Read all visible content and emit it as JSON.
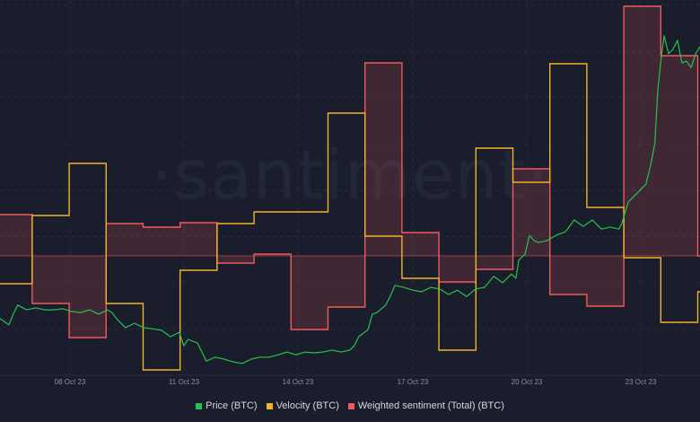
{
  "watermark": "·santiment·",
  "chart_data": {
    "type": "line",
    "title": "",
    "xlabel": "",
    "x_tick_labels": [
      "08 Oct 23",
      "11 Oct 23",
      "14 Oct 23",
      "17 Oct 23",
      "20 Oct 23",
      "23 Oct 23"
    ],
    "x_unit": "days since 06 Oct 23 00:00",
    "x_range": [
      0.13,
      19.06
    ],
    "grid": true,
    "legend": {
      "placement": "bottom-center",
      "entries": [
        "Price (BTC)",
        "Velocity (BTC)",
        "Weighted sentiment (Total) (BTC)"
      ]
    },
    "series": [
      {
        "name": "Price (BTC)",
        "type": "line",
        "color": "#27c24c",
        "unit": "USD (estimated, axis hidden)",
        "ylim": [
          26144,
          35712
        ],
        "x": [
          0.13,
          0.37,
          0.49,
          0.61,
          0.85,
          1.1,
          1.34,
          1.58,
          1.83,
          2.07,
          2.31,
          2.55,
          2.8,
          3.04,
          3.16,
          3.28,
          3.52,
          3.77,
          4.01,
          4.25,
          4.5,
          4.74,
          4.98,
          5.1,
          5.22,
          5.47,
          5.71,
          5.95,
          6.19,
          6.44,
          6.68,
          6.92,
          7.16,
          7.41,
          7.65,
          7.89,
          8.14,
          8.38,
          8.62,
          8.86,
          9.11,
          9.35,
          9.59,
          9.71,
          9.83,
          10.08,
          10.2,
          10.32,
          10.56,
          10.68,
          10.81,
          11.05,
          11.29,
          11.53,
          11.78,
          12.02,
          12.26,
          12.5,
          12.75,
          12.99,
          13.23,
          13.48,
          13.72,
          13.96,
          14.08,
          14.16,
          14.33,
          14.45,
          14.57,
          14.69,
          14.93,
          15.17,
          15.42,
          15.66,
          15.9,
          16.15,
          16.39,
          16.63,
          16.87,
          16.95,
          17.12,
          17.36,
          17.6,
          17.72,
          17.84,
          17.92,
          18.01,
          18.09,
          18.21,
          18.33,
          18.45,
          18.57,
          18.69,
          18.82,
          18.94,
          19.06
        ],
        "values": [
          27630,
          27470,
          27740,
          27970,
          27850,
          27900,
          27850,
          27850,
          27880,
          27810,
          27780,
          27850,
          27740,
          27850,
          27780,
          27630,
          27400,
          27510,
          27400,
          27370,
          27330,
          27170,
          27280,
          26940,
          27100,
          27010,
          26550,
          26650,
          26600,
          26530,
          26490,
          26600,
          26650,
          26650,
          26710,
          26780,
          26710,
          26780,
          26760,
          26780,
          26830,
          26780,
          26830,
          26940,
          27170,
          27350,
          27740,
          27780,
          27970,
          28190,
          28470,
          28420,
          28350,
          28310,
          28420,
          28380,
          28240,
          28350,
          28190,
          28380,
          28420,
          28700,
          28540,
          28760,
          28650,
          29110,
          29270,
          29740,
          29610,
          29560,
          29610,
          29740,
          29830,
          30130,
          29970,
          30130,
          29900,
          29950,
          29900,
          30060,
          30590,
          30810,
          31040,
          31500,
          32070,
          33430,
          34230,
          34800,
          34350,
          34460,
          34690,
          34120,
          34160,
          34000,
          34350,
          34530
        ]
      },
      {
        "name": "Velocity (BTC)",
        "type": "step",
        "color": "#f0b429",
        "unit": "relative (axis hidden)",
        "ylim": [
          0,
          42
        ],
        "day_start": 0,
        "values": [
          10.4,
          18.0,
          23.8,
          8.2,
          0.8,
          11.9,
          17.1,
          18.4,
          18.4,
          29.4,
          15.7,
          11.0,
          3.0,
          25.5,
          21.7,
          34.9,
          18.9,
          13.3,
          6.1,
          9.5
        ]
      },
      {
        "name": "Weighted sentiment (Total) (BTC)",
        "type": "step-area",
        "color": "#f05a5a",
        "unit": "relative (axis hidden)",
        "ylim": [
          -13.5,
          28.5
        ],
        "baseline": 0,
        "day_start": 0,
        "values": [
          4.6,
          -5.3,
          -9.1,
          3.6,
          3.2,
          3.7,
          -0.8,
          0.2,
          -8.2,
          -5.7,
          21.5,
          2.6,
          -2.9,
          -1.5,
          9.7,
          -4.3,
          -5.6,
          27.8,
          22.3,
          0.0
        ]
      }
    ]
  }
}
